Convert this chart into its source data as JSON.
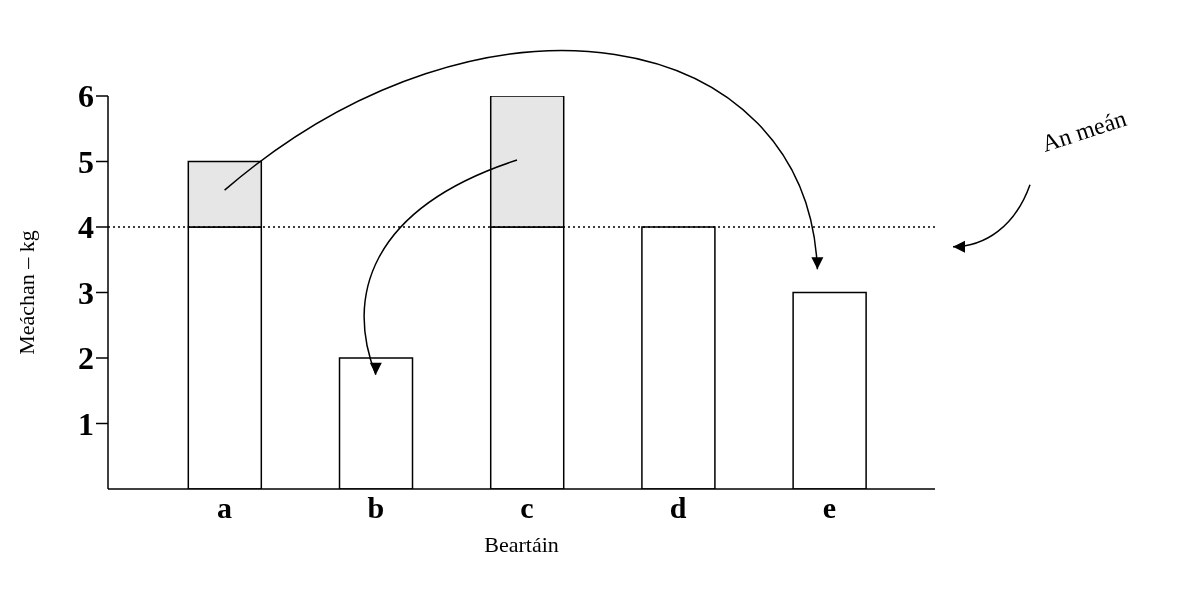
{
  "chart_data": {
    "type": "bar",
    "xlabel": "Beartáin",
    "ylabel": "Meáchan – kg",
    "categories": [
      "a",
      "b",
      "c",
      "d",
      "e"
    ],
    "series": [
      {
        "color": "#ffffff",
        "values": [
          4,
          2,
          4,
          4,
          3
        ]
      },
      {
        "color": "#e6e6e6",
        "values": [
          1,
          0,
          2,
          0,
          0
        ]
      }
    ],
    "stacked": true,
    "ylim": [
      0,
      6
    ],
    "yticks": [
      1,
      2,
      3,
      4,
      5,
      6
    ],
    "ref_lines": [
      {
        "axis": "y",
        "value": 4,
        "label": "An meán",
        "line_style": "dotted",
        "color": "#000000"
      }
    ]
  }
}
